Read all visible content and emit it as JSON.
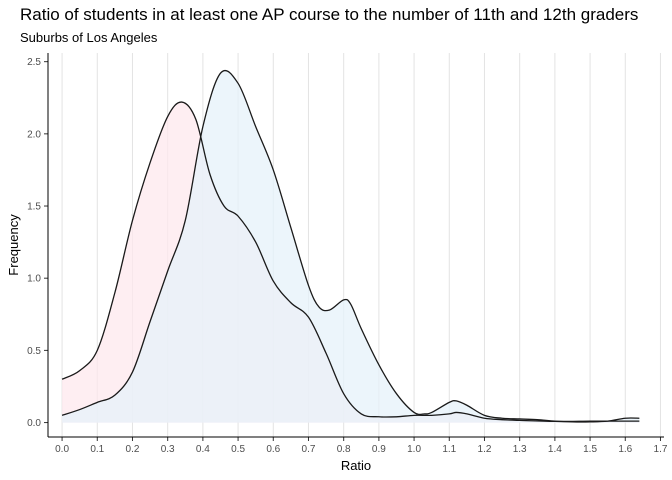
{
  "chart_data": {
    "type": "area",
    "title": "Ratio of students in at least one AP course to the number of 11th and 12th graders",
    "subtitle": "Suburbs of Los Angeles",
    "xlabel": "Ratio",
    "ylabel": "Frequency",
    "xlim": [
      -0.04,
      1.71
    ],
    "ylim": [
      -0.1,
      2.56
    ],
    "x_ticks": [
      "0.0",
      "0.1",
      "0.2",
      "0.3",
      "0.4",
      "0.5",
      "0.6",
      "0.7",
      "0.8",
      "0.9",
      "1.0",
      "1.1",
      "1.2",
      "1.3",
      "1.4",
      "1.5",
      "1.6",
      "1.7"
    ],
    "y_ticks": [
      "0.0",
      "0.5",
      "1.0",
      "1.5",
      "2.0",
      "2.5"
    ],
    "grid": "vertical",
    "legend": "none",
    "series": [
      {
        "fill": "#fde8ee",
        "stroke": "#1a1a1a",
        "points": [
          [
            0.0,
            0.3
          ],
          [
            0.05,
            0.36
          ],
          [
            0.1,
            0.5
          ],
          [
            0.15,
            0.9
          ],
          [
            0.2,
            1.4
          ],
          [
            0.25,
            1.8
          ],
          [
            0.3,
            2.12
          ],
          [
            0.34,
            2.22
          ],
          [
            0.38,
            2.1
          ],
          [
            0.42,
            1.72
          ],
          [
            0.46,
            1.5
          ],
          [
            0.5,
            1.43
          ],
          [
            0.55,
            1.25
          ],
          [
            0.6,
            0.98
          ],
          [
            0.65,
            0.83
          ],
          [
            0.7,
            0.73
          ],
          [
            0.75,
            0.48
          ],
          [
            0.8,
            0.2
          ],
          [
            0.85,
            0.06
          ],
          [
            0.9,
            0.04
          ],
          [
            0.95,
            0.04
          ],
          [
            1.0,
            0.05
          ],
          [
            1.05,
            0.05
          ],
          [
            1.1,
            0.06
          ],
          [
            1.12,
            0.07
          ],
          [
            1.15,
            0.06
          ],
          [
            1.2,
            0.03
          ],
          [
            1.25,
            0.02
          ],
          [
            1.3,
            0.015
          ],
          [
            1.4,
            0.008
          ],
          [
            1.5,
            0.01
          ],
          [
            1.55,
            0.01
          ],
          [
            1.6,
            0.01
          ],
          [
            1.64,
            0.01
          ]
        ]
      },
      {
        "fill": "#e6f2fa",
        "stroke": "#1a1a1a",
        "points": [
          [
            0.0,
            0.05
          ],
          [
            0.05,
            0.09
          ],
          [
            0.1,
            0.14
          ],
          [
            0.15,
            0.19
          ],
          [
            0.2,
            0.35
          ],
          [
            0.25,
            0.7
          ],
          [
            0.3,
            1.05
          ],
          [
            0.35,
            1.4
          ],
          [
            0.4,
            2.05
          ],
          [
            0.45,
            2.42
          ],
          [
            0.5,
            2.35
          ],
          [
            0.55,
            2.05
          ],
          [
            0.6,
            1.75
          ],
          [
            0.65,
            1.35
          ],
          [
            0.7,
            0.95
          ],
          [
            0.73,
            0.8
          ],
          [
            0.76,
            0.78
          ],
          [
            0.8,
            0.85
          ],
          [
            0.82,
            0.82
          ],
          [
            0.85,
            0.65
          ],
          [
            0.9,
            0.4
          ],
          [
            0.95,
            0.2
          ],
          [
            1.0,
            0.07
          ],
          [
            1.03,
            0.06
          ],
          [
            1.05,
            0.07
          ],
          [
            1.1,
            0.14
          ],
          [
            1.12,
            0.15
          ],
          [
            1.15,
            0.12
          ],
          [
            1.2,
            0.05
          ],
          [
            1.25,
            0.03
          ],
          [
            1.3,
            0.025
          ],
          [
            1.35,
            0.02
          ],
          [
            1.4,
            0.01
          ],
          [
            1.45,
            0.005
          ],
          [
            1.5,
            0.005
          ],
          [
            1.55,
            0.01
          ],
          [
            1.6,
            0.03
          ],
          [
            1.64,
            0.03
          ]
        ]
      }
    ]
  }
}
